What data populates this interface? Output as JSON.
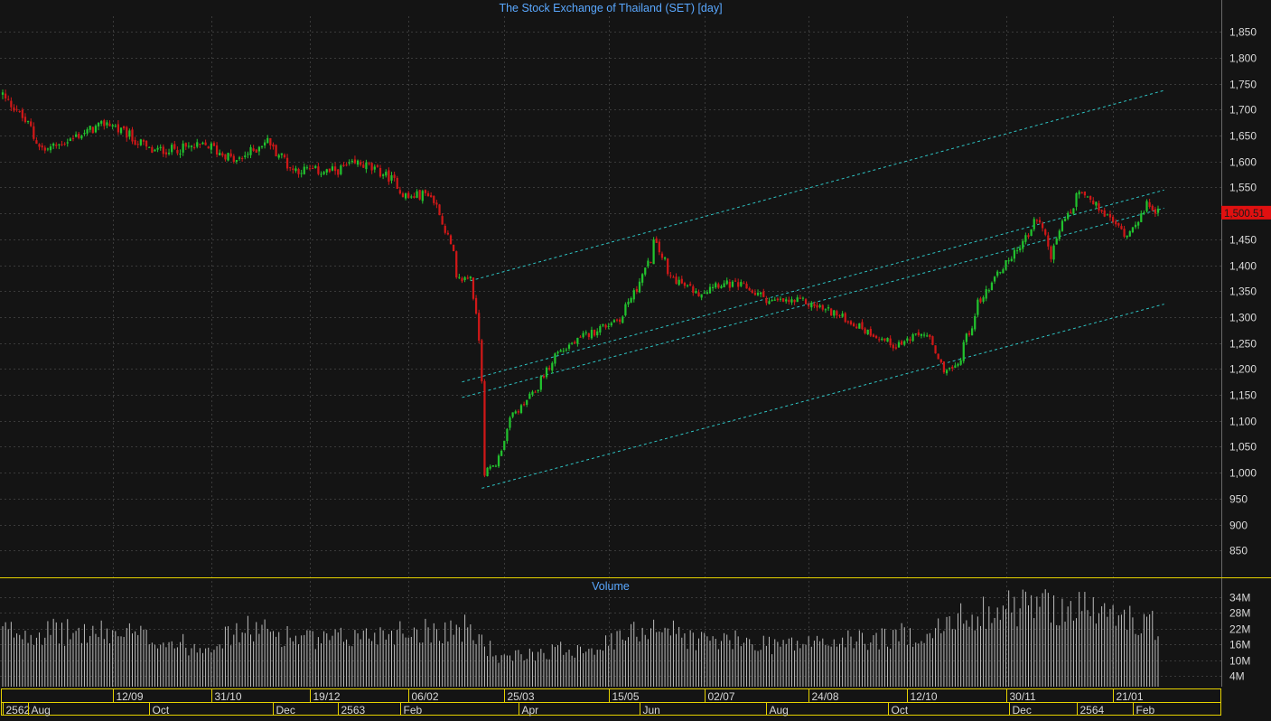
{
  "colors": {
    "background": "#141414",
    "grid": "#3a3a3a",
    "accent_text": "#5aa8ff",
    "axis_text": "#d8d8d8",
    "up": "#22c22e",
    "down": "#d01818",
    "trendline": "#2ec4c4",
    "separator": "#e6d200",
    "volume": "#bdbdbd",
    "price_badge": "#e01010"
  },
  "chart_data": [
    {
      "type": "candlestick",
      "title": "The Stock Exchange of Thailand (SET) [day]",
      "ylim": [
        800,
        1880
      ],
      "y_ticks": [
        "850",
        "900",
        "950",
        "1,000",
        "1,050",
        "1,100",
        "1,150",
        "1,200",
        "1,250",
        "1,300",
        "1,350",
        "1,400",
        "1,450",
        "1,500",
        "1,550",
        "1,600",
        "1,650",
        "1,700",
        "1,750",
        "1,800",
        "1,850"
      ],
      "y_tick_values": [
        850,
        900,
        950,
        1000,
        1050,
        1100,
        1150,
        1200,
        1250,
        1300,
        1350,
        1400,
        1450,
        1500,
        1550,
        1600,
        1650,
        1700,
        1750,
        1800,
        1850
      ],
      "last_price": 1500.51,
      "last_price_label": "1,500.51",
      "date_range": [
        "2019-07-19",
        "2021-02-12"
      ],
      "anchors": [
        {
          "date": "2019-07-19",
          "close": 1730
        },
        {
          "date": "2019-07-29",
          "close": 1690
        },
        {
          "date": "2019-08-09",
          "close": 1620
        },
        {
          "date": "2019-09-10",
          "close": 1675
        },
        {
          "date": "2019-10-02",
          "close": 1620
        },
        {
          "date": "2019-10-30",
          "close": 1630
        },
        {
          "date": "2019-11-13",
          "close": 1600
        },
        {
          "date": "2019-11-28",
          "close": 1640
        },
        {
          "date": "2019-12-11",
          "close": 1585
        },
        {
          "date": "2019-12-30",
          "close": 1580
        },
        {
          "date": "2020-01-13",
          "close": 1597
        },
        {
          "date": "2020-01-28",
          "close": 1570
        },
        {
          "date": "2020-02-06",
          "close": 1530
        },
        {
          "date": "2020-02-17",
          "close": 1540
        },
        {
          "date": "2020-02-25",
          "close": 1470
        },
        {
          "date": "2020-03-02",
          "close": 1370
        },
        {
          "date": "2020-03-09",
          "close": 1380
        },
        {
          "date": "2020-03-12",
          "close": 1260
        },
        {
          "date": "2020-03-13",
          "close": 1180
        },
        {
          "date": "2020-03-16",
          "close": 1000
        },
        {
          "date": "2020-03-23",
          "close": 1030
        },
        {
          "date": "2020-03-27",
          "close": 1100
        },
        {
          "date": "2020-04-08",
          "close": 1150
        },
        {
          "date": "2020-04-20",
          "close": 1230
        },
        {
          "date": "2020-05-07",
          "close": 1270
        },
        {
          "date": "2020-05-22",
          "close": 1300
        },
        {
          "date": "2020-06-03",
          "close": 1390
        },
        {
          "date": "2020-06-08",
          "close": 1445
        },
        {
          "date": "2020-06-15",
          "close": 1380
        },
        {
          "date": "2020-06-29",
          "close": 1345
        },
        {
          "date": "2020-07-08",
          "close": 1365
        },
        {
          "date": "2020-07-21",
          "close": 1360
        },
        {
          "date": "2020-08-05",
          "close": 1330
        },
        {
          "date": "2020-08-20",
          "close": 1330
        },
        {
          "date": "2020-09-04",
          "close": 1310
        },
        {
          "date": "2020-09-18",
          "close": 1280
        },
        {
          "date": "2020-10-05",
          "close": 1245
        },
        {
          "date": "2020-10-20",
          "close": 1270
        },
        {
          "date": "2020-10-29",
          "close": 1200
        },
        {
          "date": "2020-11-04",
          "close": 1200
        },
        {
          "date": "2020-11-09",
          "close": 1250
        },
        {
          "date": "2020-11-16",
          "close": 1330
        },
        {
          "date": "2020-11-26",
          "close": 1390
        },
        {
          "date": "2020-12-07",
          "close": 1440
        },
        {
          "date": "2020-12-15",
          "close": 1490
        },
        {
          "date": "2020-12-22",
          "close": 1420
        },
        {
          "date": "2020-12-25",
          "close": 1460
        },
        {
          "date": "2021-01-05",
          "close": 1540
        },
        {
          "date": "2021-01-14",
          "close": 1510
        },
        {
          "date": "2021-01-28",
          "close": 1460
        },
        {
          "date": "2021-02-03",
          "close": 1490
        },
        {
          "date": "2021-02-09",
          "close": 1520
        },
        {
          "date": "2021-02-12",
          "close": 1500.51
        }
      ],
      "trendlines": [
        {
          "start": {
            "date": "2020-03-09",
            "value": 1370
          },
          "end": {
            "date": "2021-02-15",
            "value": 1737
          }
        },
        {
          "start": {
            "date": "2020-03-04",
            "value": 1175
          },
          "end": {
            "date": "2021-02-15",
            "value": 1545
          }
        },
        {
          "start": {
            "date": "2020-03-04",
            "value": 1145
          },
          "end": {
            "date": "2021-02-15",
            "value": 1510
          }
        },
        {
          "start": {
            "date": "2020-03-13",
            "value": 970
          },
          "end": {
            "date": "2021-02-15",
            "value": 1325
          }
        }
      ]
    },
    {
      "type": "bar",
      "title": "Volume",
      "ylim": [
        0,
        40000000
      ],
      "y_ticks": [
        "4M",
        "10M",
        "16M",
        "22M",
        "28M",
        "34M"
      ],
      "y_tick_values": [
        4000000,
        10000000,
        16000000,
        22000000,
        28000000,
        34000000
      ],
      "volume_anchors": [
        {
          "date": "2019-07-19",
          "value": 21000000
        },
        {
          "date": "2019-09-20",
          "value": 20000000
        },
        {
          "date": "2019-10-24",
          "value": 15000000
        },
        {
          "date": "2019-11-20",
          "value": 22000000
        },
        {
          "date": "2019-12-24",
          "value": 17000000
        },
        {
          "date": "2020-01-30",
          "value": 21000000
        },
        {
          "date": "2020-03-05",
          "value": 22000000
        },
        {
          "date": "2020-03-13",
          "value": 18000000
        },
        {
          "date": "2020-03-24",
          "value": 10000000
        },
        {
          "date": "2020-04-10",
          "value": 13000000
        },
        {
          "date": "2020-05-15",
          "value": 16000000
        },
        {
          "date": "2020-06-08",
          "value": 24000000
        },
        {
          "date": "2020-06-26",
          "value": 18000000
        },
        {
          "date": "2020-08-14",
          "value": 16000000
        },
        {
          "date": "2020-09-25",
          "value": 18000000
        },
        {
          "date": "2020-10-26",
          "value": 21000000
        },
        {
          "date": "2020-11-12",
          "value": 28000000
        },
        {
          "date": "2020-12-14",
          "value": 31000000
        },
        {
          "date": "2021-01-06",
          "value": 30000000
        },
        {
          "date": "2021-01-26",
          "value": 26000000
        },
        {
          "date": "2021-02-12",
          "value": 23000000
        }
      ]
    }
  ],
  "x_axis": {
    "upper_labels": [
      {
        "text": "12/09",
        "date": "2019-09-12"
      },
      {
        "text": "31/10",
        "date": "2019-10-31"
      },
      {
        "text": "19/12",
        "date": "2019-12-19"
      },
      {
        "text": "06/02",
        "date": "2020-02-06"
      },
      {
        "text": "25/03",
        "date": "2020-03-25"
      },
      {
        "text": "15/05",
        "date": "2020-05-15"
      },
      {
        "text": "02/07",
        "date": "2020-07-02"
      },
      {
        "text": "24/08",
        "date": "2020-08-24"
      },
      {
        "text": "12/10",
        "date": "2020-10-12"
      },
      {
        "text": "30/11",
        "date": "2020-11-30"
      },
      {
        "text": "21/01",
        "date": "2021-01-21"
      }
    ],
    "lower_labels": [
      {
        "text": "2562",
        "date": "2019-07-19"
      },
      {
        "text": "Aug",
        "date": "2019-08-01"
      },
      {
        "text": "Oct",
        "date": "2019-10-01"
      },
      {
        "text": "Dec",
        "date": "2019-12-02"
      },
      {
        "text": "2563",
        "date": "2020-01-02"
      },
      {
        "text": "Feb",
        "date": "2020-02-03"
      },
      {
        "text": "Apr",
        "date": "2020-04-01"
      },
      {
        "text": "Jun",
        "date": "2020-06-01"
      },
      {
        "text": "Aug",
        "date": "2020-08-03"
      },
      {
        "text": "Oct",
        "date": "2020-10-01"
      },
      {
        "text": "Dec",
        "date": "2020-12-01"
      },
      {
        "text": "2564",
        "date": "2021-01-04"
      },
      {
        "text": "Feb",
        "date": "2021-02-01"
      }
    ]
  }
}
